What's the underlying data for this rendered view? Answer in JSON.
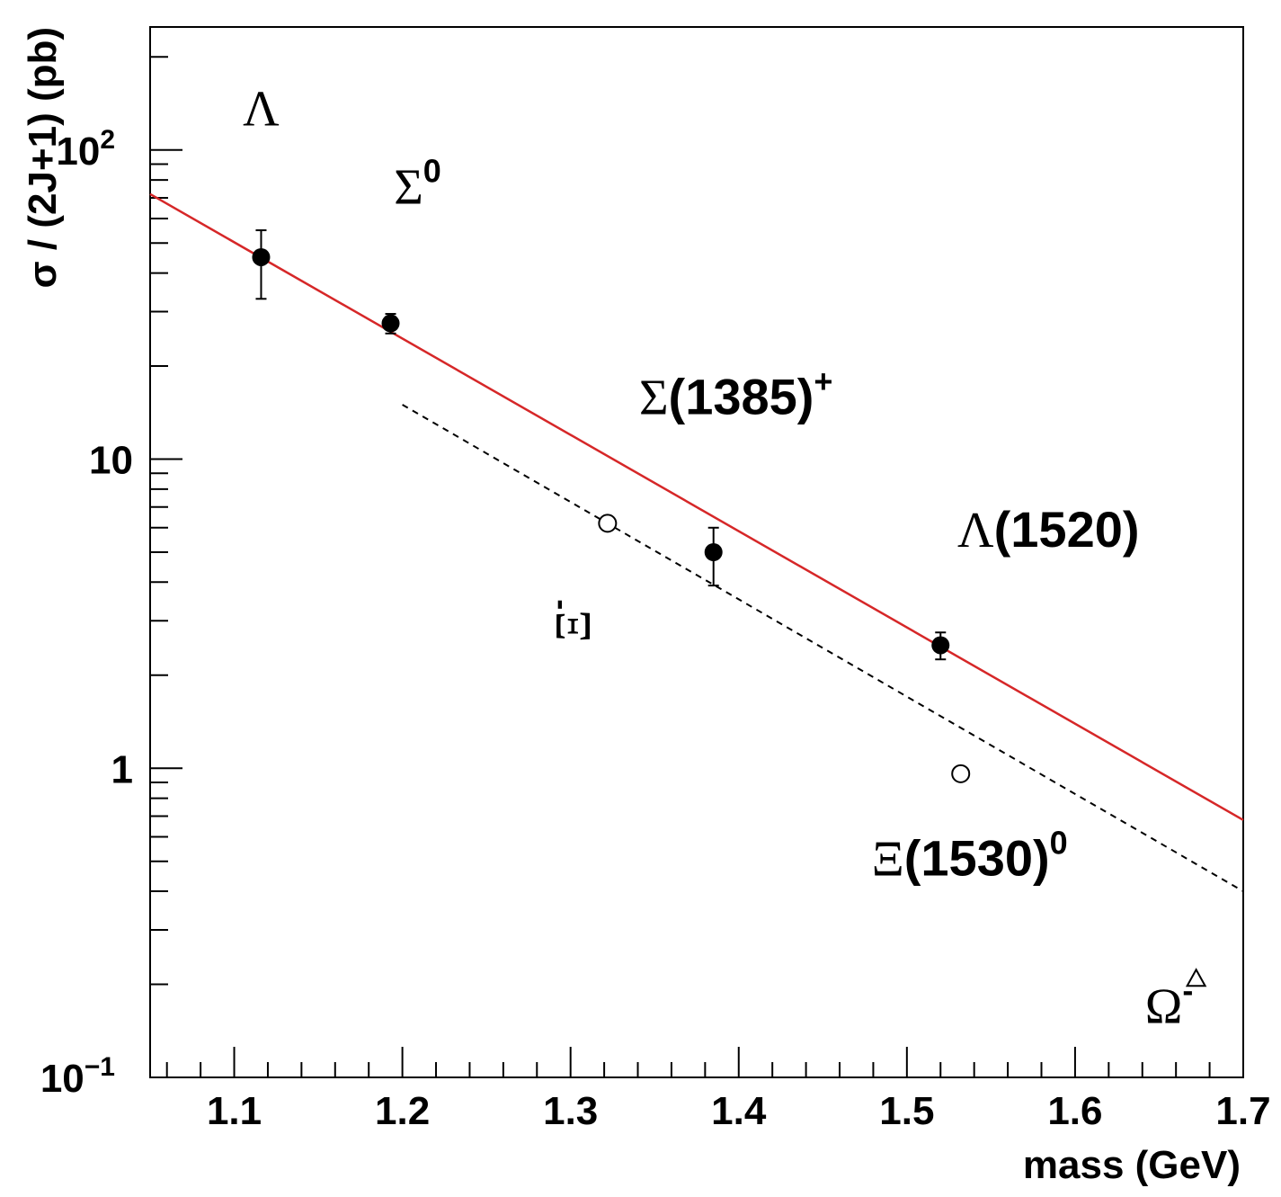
{
  "chart_data": {
    "type": "scatter",
    "title": "",
    "xlabel": "mass (GeV)",
    "ylabel": "σ / (2J+1) (pb)",
    "xlim": [
      1.05,
      1.7
    ],
    "ylim": [
      0.1,
      250
    ],
    "yscale": "log",
    "grid": false,
    "x_ticks": [
      {
        "value": 1.1,
        "label": "1.1"
      },
      {
        "value": 1.2,
        "label": "1.2"
      },
      {
        "value": 1.3,
        "label": "1.3"
      },
      {
        "value": 1.4,
        "label": "1.4"
      },
      {
        "value": 1.5,
        "label": "1.5"
      },
      {
        "value": 1.6,
        "label": "1.6"
      },
      {
        "value": 1.7,
        "label": "1.7"
      }
    ],
    "y_ticks": [
      {
        "value": 0.1,
        "base": "10",
        "exp": "−1"
      },
      {
        "value": 1,
        "base": "1",
        "exp": ""
      },
      {
        "value": 10,
        "base": "10",
        "exp": ""
      },
      {
        "value": 100,
        "base": "10",
        "exp": "2"
      }
    ],
    "series": [
      {
        "marker": "filled-circle",
        "points": [
          {
            "x": 1.116,
            "y": 45.0,
            "err_lo": 12.0,
            "err_hi": 10.0
          },
          {
            "x": 1.193,
            "y": 27.5,
            "err_lo": 2.0,
            "err_hi": 2.0
          },
          {
            "x": 1.385,
            "y": 5.0,
            "err_lo": 1.1,
            "err_hi": 1.0
          },
          {
            "x": 1.52,
            "y": 2.5,
            "err_lo": 0.25,
            "err_hi": 0.25
          }
        ]
      },
      {
        "marker": "open-circle",
        "points": [
          {
            "x": 1.322,
            "y": 6.2
          },
          {
            "x": 1.532,
            "y": 0.96
          }
        ]
      },
      {
        "marker": "open-triangle",
        "points": [
          {
            "x": 1.672,
            "y": 0.21
          }
        ]
      }
    ],
    "fit_lines": [
      {
        "style": "solid",
        "color": "#d62728",
        "x": [
          1.05,
          1.7
        ],
        "y": [
          72,
          0.68
        ]
      },
      {
        "style": "dashed",
        "color": "#000000",
        "x": [
          1.2,
          1.7
        ],
        "y": [
          15,
          0.4
        ]
      }
    ],
    "annotations": [
      {
        "text": "Λ",
        "sup": "",
        "x": 1.116,
        "y": 120
      },
      {
        "text": "Σ",
        "sup": "0",
        "x": 1.193,
        "y": 67
      },
      {
        "text": "Σ(1385)",
        "sup": "+",
        "x": 1.385,
        "y": 14
      },
      {
        "text": "Λ(1520)",
        "sup": "",
        "x": 1.52,
        "y": 5.2
      },
      {
        "text": "Ξ",
        "sup": "-",
        "x": 1.322,
        "y": 3.0
      },
      {
        "text": "Ξ(1530)",
        "sup": "0",
        "x": 1.532,
        "y": 0.45
      },
      {
        "text": "Ω",
        "sup": "-",
        "x": 1.672,
        "y": 0.15
      }
    ]
  }
}
